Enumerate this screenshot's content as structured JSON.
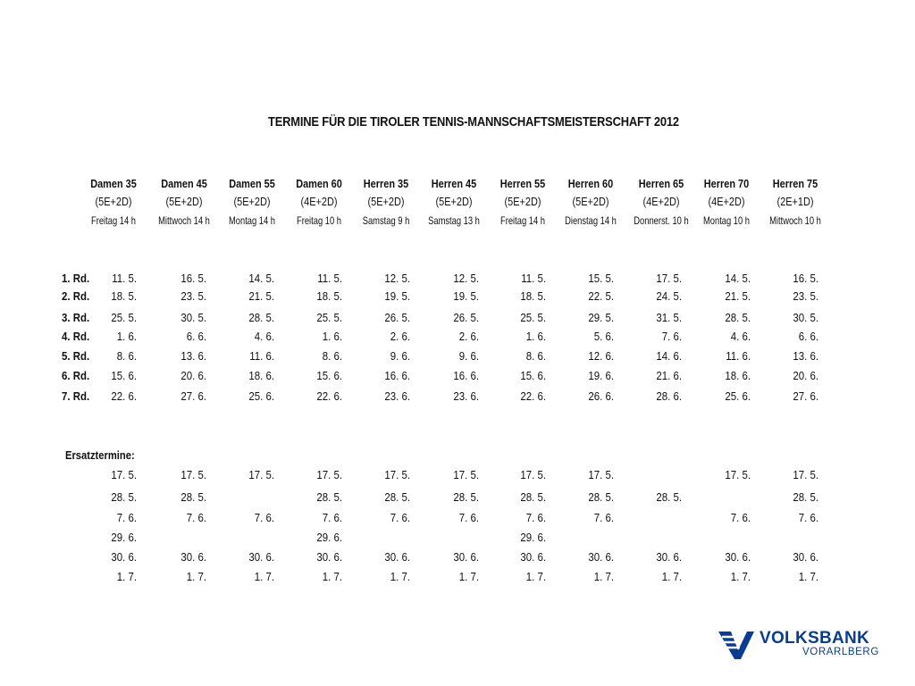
{
  "title": "TERMINE FÜR DIE TIROLER TENNIS-MANNSCHAFTSMEISTERSCHAFT 2012",
  "columns": [
    {
      "name": "Damen 35",
      "format": "(5E+2D)",
      "time": "Freitag 14 h"
    },
    {
      "name": "Damen 45",
      "format": "(5E+2D)",
      "time": "Mittwoch 14 h"
    },
    {
      "name": "Damen 55",
      "format": "(5E+2D)",
      "time": "Montag 14 h"
    },
    {
      "name": "Damen 60",
      "format": "(4E+2D)",
      "time": "Freitag 10 h"
    },
    {
      "name": "Herren 35",
      "format": "(5E+2D)",
      "time": "Samstag 9 h"
    },
    {
      "name": "Herren 45",
      "format": "(5E+2D)",
      "time": "Samstag 13 h"
    },
    {
      "name": "Herren 55",
      "format": "(5E+2D)",
      "time": "Freitag 14 h"
    },
    {
      "name": "Herren 60",
      "format": "(5E+2D)",
      "time": "Dienstag 14 h"
    },
    {
      "name": "Herren 65",
      "format": "(4E+2D)",
      "time": "Donnerst. 10 h"
    },
    {
      "name": "Herren 70",
      "format": "(4E+2D)",
      "time": "Montag 10 h"
    },
    {
      "name": "Herren 75",
      "format": "(2E+1D)",
      "time": "Mittwoch 10 h"
    }
  ],
  "rounds": [
    {
      "label": "1. Rd.",
      "dates": [
        "11. 5.",
        "16. 5.",
        "14. 5.",
        "11. 5.",
        "12. 5.",
        "12. 5.",
        "11. 5.",
        "15. 5.",
        "17. 5.",
        "14. 5.",
        "16. 5."
      ]
    },
    {
      "label": "2. Rd.",
      "dates": [
        "18. 5.",
        "23. 5.",
        "21. 5.",
        "18. 5.",
        "19. 5.",
        "19. 5.",
        "18. 5.",
        "22. 5.",
        "24. 5.",
        "21. 5.",
        "23. 5."
      ]
    },
    {
      "label": "3. Rd.",
      "dates": [
        "25. 5.",
        "30. 5.",
        "28. 5.",
        "25. 5.",
        "26. 5.",
        "26. 5.",
        "25. 5.",
        "29. 5.",
        "31. 5.",
        "28. 5.",
        "30. 5."
      ]
    },
    {
      "label": "4. Rd.",
      "dates": [
        "1. 6.",
        "6. 6.",
        "4. 6.",
        "1. 6.",
        "2. 6.",
        "2. 6.",
        "1. 6.",
        "5. 6.",
        "7. 6.",
        "4. 6.",
        "6. 6."
      ]
    },
    {
      "label": "5. Rd.",
      "dates": [
        "8. 6.",
        "13. 6.",
        "11. 6.",
        "8. 6.",
        "9. 6.",
        "9. 6.",
        "8. 6.",
        "12. 6.",
        "14. 6.",
        "11. 6.",
        "13. 6."
      ]
    },
    {
      "label": "6. Rd.",
      "dates": [
        "15. 6.",
        "20. 6.",
        "18. 6.",
        "15. 6.",
        "16. 6.",
        "16. 6.",
        "15. 6.",
        "19. 6.",
        "21. 6.",
        "18. 6.",
        "20. 6."
      ]
    },
    {
      "label": "7. Rd.",
      "dates": [
        "22. 6.",
        "27. 6.",
        "25. 6.",
        "22. 6.",
        "23. 6.",
        "23. 6.",
        "22. 6.",
        "26. 6.",
        "28. 6.",
        "25. 6.",
        "27. 6."
      ]
    }
  ],
  "ersatz_label": "Ersatztermine:",
  "ersatz_rows": [
    [
      "17. 5.",
      "17. 5.",
      "17. 5.",
      "17. 5.",
      "17. 5.",
      "17. 5.",
      "17. 5.",
      "17. 5.",
      "",
      "17. 5.",
      "17. 5."
    ],
    [
      "28. 5.",
      "28. 5.",
      "",
      "28. 5.",
      "28. 5.",
      "28. 5.",
      "28. 5.",
      "28. 5.",
      "28. 5.",
      "",
      "28. 5."
    ],
    [
      "7. 6.",
      "7. 6.",
      "7. 6.",
      "7. 6.",
      "7. 6.",
      "7. 6.",
      "7. 6.",
      "7. 6.",
      "",
      "7. 6.",
      "7. 6."
    ],
    [
      "29. 6.",
      "",
      "",
      "29. 6.",
      "",
      "",
      "29. 6.",
      "",
      "",
      "",
      ""
    ],
    [
      "30. 6.",
      "30. 6.",
      "30. 6.",
      "30. 6.",
      "30. 6.",
      "30. 6.",
      "30. 6.",
      "30. 6.",
      "30. 6.",
      "30. 6.",
      "30. 6."
    ],
    [
      "1. 7.",
      "1. 7.",
      "1. 7.",
      "1. 7.",
      "1. 7.",
      "1. 7.",
      "1. 7.",
      "1. 7.",
      "1. 7.",
      "1. 7.",
      "1. 7."
    ]
  ],
  "logo": {
    "brand": "VOLKSBANK",
    "region": "VORARLBERG",
    "icon": "volksbank-v-icon",
    "color": "#0a3d8f"
  }
}
